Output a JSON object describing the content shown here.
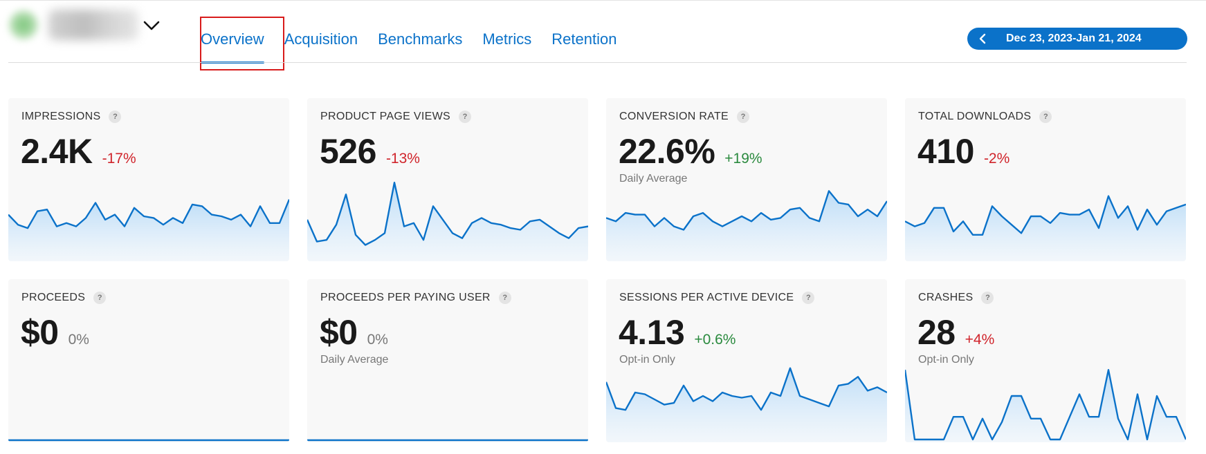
{
  "header": {
    "tabs": [
      {
        "label": "Overview",
        "active": true
      },
      {
        "label": "Acquisition",
        "active": false
      },
      {
        "label": "Benchmarks",
        "active": false
      },
      {
        "label": "Metrics",
        "active": false
      },
      {
        "label": "Retention",
        "active": false
      }
    ],
    "date_range": "Dec 23, 2023-Jan 21, 2024",
    "accent_color": "#0b72c9",
    "highlight_color": "#d81b1b"
  },
  "cards": [
    {
      "title": "IMPRESSIONS",
      "value": "2.4K",
      "delta": "-17%",
      "delta_tone": "neg",
      "subtitle": "",
      "series": [
        52,
        40,
        36,
        56,
        58,
        38,
        42,
        38,
        48,
        66,
        46,
        52,
        38,
        60,
        50,
        48,
        40,
        48,
        42,
        64,
        62,
        52,
        50,
        46,
        52,
        38,
        62,
        42,
        42,
        70
      ]
    },
    {
      "title": "PRODUCT PAGE VIEWS",
      "value": "526",
      "delta": "-13%",
      "delta_tone": "neg",
      "subtitle": "",
      "series": [
        46,
        20,
        22,
        40,
        76,
        28,
        16,
        22,
        30,
        90,
        38,
        42,
        22,
        62,
        46,
        30,
        24,
        42,
        48,
        42,
        40,
        36,
        34,
        44,
        46,
        38,
        30,
        24,
        36,
        38
      ]
    },
    {
      "title": "CONVERSION RATE",
      "value": "22.6%",
      "delta": "+19%",
      "delta_tone": "pos",
      "subtitle": "Daily Average",
      "series": [
        48,
        44,
        54,
        52,
        52,
        38,
        48,
        38,
        34,
        50,
        54,
        44,
        38,
        44,
        50,
        44,
        54,
        46,
        48,
        58,
        60,
        48,
        44,
        80,
        66,
        64,
        50,
        58,
        50,
        68
      ]
    },
    {
      "title": "TOTAL DOWNLOADS",
      "value": "410",
      "delta": "-2%",
      "delta_tone": "neg",
      "subtitle": "",
      "series": [
        44,
        38,
        42,
        60,
        60,
        32,
        44,
        28,
        28,
        62,
        50,
        40,
        30,
        50,
        50,
        42,
        54,
        52,
        52,
        58,
        36,
        74,
        48,
        62,
        34,
        58,
        40,
        56,
        60,
        64
      ]
    }
  ],
  "cards_bottom": [
    {
      "title": "PROCEEDS",
      "value": "$0",
      "delta": "0%",
      "delta_tone": "neutral",
      "subtitle": "",
      "series": [
        0,
        0,
        0,
        0,
        0,
        0,
        0,
        0,
        0,
        0,
        0,
        0,
        0,
        0,
        0,
        0,
        0,
        0,
        0,
        0,
        0,
        0,
        0,
        0,
        0,
        0,
        0,
        0,
        0,
        0
      ]
    },
    {
      "title": "PROCEEDS PER PAYING USER",
      "value": "$0",
      "delta": "0%",
      "delta_tone": "neutral",
      "subtitle": "Daily Average",
      "series": [
        0,
        0,
        0,
        0,
        0,
        0,
        0,
        0,
        0,
        0,
        0,
        0,
        0,
        0,
        0,
        0,
        0,
        0,
        0,
        0,
        0,
        0,
        0,
        0,
        0,
        0,
        0,
        0,
        0,
        0
      ]
    },
    {
      "title": "SESSIONS PER ACTIVE DEVICE",
      "value": "4.13",
      "delta": "+0.6%",
      "delta_tone": "pos",
      "subtitle": "Opt-in Only",
      "series": [
        66,
        36,
        34,
        54,
        52,
        46,
        40,
        42,
        62,
        44,
        50,
        44,
        54,
        50,
        48,
        50,
        34,
        54,
        50,
        82,
        50,
        46,
        42,
        38,
        62,
        64,
        72,
        56,
        60,
        54
      ]
    },
    {
      "title": "CRASHES",
      "value": "28",
      "delta": "+4%",
      "delta_tone": "neg",
      "subtitle": "Opt-in Only",
      "series": [
        80,
        0,
        0,
        0,
        0,
        26,
        26,
        0,
        24,
        0,
        20,
        50,
        50,
        24,
        24,
        0,
        0,
        26,
        52,
        26,
        26,
        80,
        24,
        0,
        52,
        0,
        50,
        26,
        26,
        0
      ]
    }
  ]
}
